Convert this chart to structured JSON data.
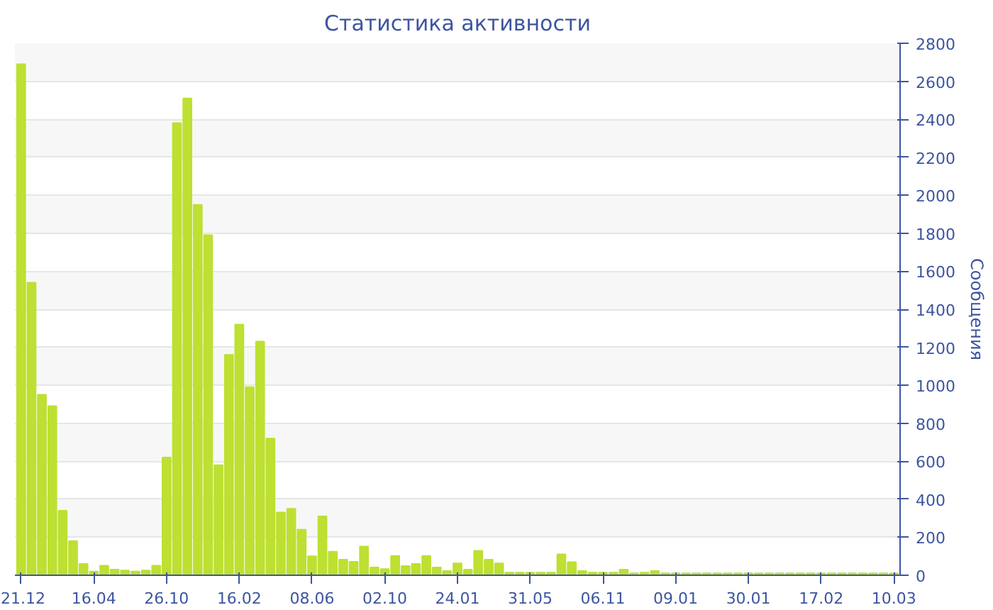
{
  "chart_data": {
    "type": "bar",
    "title": "Статистика активности",
    "ylabel": "Сообщения",
    "categories": [
      "21.12",
      null,
      null,
      null,
      null,
      null,
      null,
      "16.04",
      null,
      null,
      null,
      null,
      null,
      null,
      "26.10",
      null,
      null,
      null,
      null,
      null,
      null,
      "16.02",
      null,
      null,
      null,
      null,
      null,
      null,
      "08.06",
      null,
      null,
      null,
      null,
      null,
      null,
      "02.10",
      null,
      null,
      null,
      null,
      null,
      null,
      "24.01",
      null,
      null,
      null,
      null,
      null,
      null,
      "31.05",
      null,
      null,
      null,
      null,
      null,
      null,
      "06.11",
      null,
      null,
      null,
      null,
      null,
      null,
      "09.01",
      null,
      null,
      null,
      null,
      null,
      null,
      "30.01",
      null,
      null,
      null,
      null,
      null,
      null,
      "17.02",
      null,
      null,
      null,
      null,
      null,
      null,
      "10.03"
    ],
    "values": [
      2690,
      1540,
      950,
      890,
      340,
      180,
      60,
      20,
      50,
      30,
      25,
      20,
      25,
      50,
      620,
      2380,
      2510,
      1950,
      1790,
      580,
      1160,
      1320,
      990,
      1230,
      720,
      330,
      350,
      240,
      100,
      310,
      124,
      82,
      71,
      151,
      41,
      33,
      102,
      49,
      60,
      102,
      41,
      22,
      63,
      30,
      129,
      82,
      63,
      14,
      14,
      14,
      14,
      14,
      110,
      69,
      22,
      14,
      14,
      14,
      30,
      10,
      14,
      22,
      10,
      10,
      10,
      10,
      10,
      10,
      10,
      10,
      10,
      10,
      10,
      10,
      10,
      10,
      10,
      10,
      10,
      10,
      10,
      10,
      10,
      10,
      10
    ],
    "color": "#bde032",
    "ylim": [
      0,
      2800
    ],
    "yticks": [
      0,
      200,
      400,
      600,
      800,
      1000,
      1200,
      1400,
      1600,
      1800,
      2000,
      2200,
      2400,
      2600,
      2800
    ],
    "grid": "y"
  }
}
